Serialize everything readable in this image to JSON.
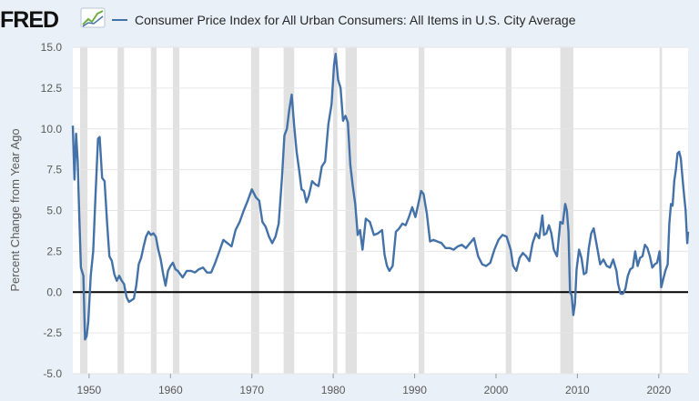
{
  "logo": {
    "text": "FRED"
  },
  "colors": {
    "page_background": "#eaf0f7",
    "plot_background": "#ffffff",
    "series": "#4472a8",
    "recession_shading": "#e1e1e1",
    "zero_line": "#000000",
    "gridline": "#e6e6e6"
  },
  "chart_data": {
    "type": "line",
    "title": "",
    "xlabel": "",
    "ylabel": "Percent Change from Year Ago",
    "xlim": [
      1948.0,
      2023.6
    ],
    "ylim": [
      -5.0,
      15.0
    ],
    "y_ticks": [
      -5.0,
      -2.5,
      0.0,
      2.5,
      5.0,
      7.5,
      10.0,
      12.5,
      15.0
    ],
    "y_tick_labels": [
      "-5.0",
      "-2.5",
      "0.0",
      "2.5",
      "5.0",
      "7.5",
      "10.0",
      "12.5",
      "15.0"
    ],
    "x_ticks": [
      1950,
      1960,
      1970,
      1980,
      1990,
      2000,
      2010,
      2020
    ],
    "x_tick_labels": [
      "1950",
      "1960",
      "1970",
      "1980",
      "1990",
      "2000",
      "2010",
      "2020"
    ],
    "grid": "horizontal",
    "zero_line": true,
    "legend": {
      "placement": "top",
      "entries": [
        "Consumer Price Index for All Urban Consumers: All Items in U.S. City Average"
      ]
    },
    "recessions": [
      [
        1948.9,
        1949.8
      ],
      [
        1953.5,
        1954.3
      ],
      [
        1957.6,
        1958.3
      ],
      [
        1960.3,
        1961.1
      ],
      [
        1969.9,
        1970.9
      ],
      [
        1973.9,
        1975.2
      ],
      [
        1980.0,
        1980.5
      ],
      [
        1981.5,
        1982.9
      ],
      [
        1990.5,
        1991.2
      ],
      [
        2001.2,
        2001.9
      ],
      [
        2007.9,
        2009.5
      ],
      [
        2020.1,
        2020.4
      ]
    ],
    "series": [
      {
        "name": "Consumer Price Index for All Urban Consumers: All Items in U.S. City Average",
        "x": [
          1948.0,
          1948.2,
          1948.4,
          1948.6,
          1948.8,
          1949.0,
          1949.3,
          1949.5,
          1949.7,
          1949.9,
          1950.2,
          1950.5,
          1950.8,
          1951.1,
          1951.3,
          1951.6,
          1951.9,
          1952.2,
          1952.5,
          1952.8,
          1953.1,
          1953.4,
          1953.7,
          1954.0,
          1954.3,
          1954.6,
          1954.9,
          1955.2,
          1955.5,
          1955.8,
          1956.1,
          1956.4,
          1956.7,
          1957.0,
          1957.3,
          1957.6,
          1957.9,
          1958.2,
          1958.5,
          1958.8,
          1959.1,
          1959.4,
          1959.7,
          1960.0,
          1960.3,
          1960.6,
          1960.9,
          1961.2,
          1961.5,
          1962.0,
          1962.5,
          1963.0,
          1963.5,
          1964.0,
          1964.5,
          1965.0,
          1965.5,
          1966.0,
          1966.5,
          1967.0,
          1967.5,
          1968.0,
          1968.5,
          1969.0,
          1969.5,
          1970.0,
          1970.5,
          1970.9,
          1971.3,
          1971.7,
          1972.1,
          1972.5,
          1972.9,
          1973.3,
          1973.7,
          1974.0,
          1974.3,
          1974.6,
          1974.9,
          1975.2,
          1975.5,
          1975.8,
          1976.1,
          1976.4,
          1976.7,
          1977.0,
          1977.4,
          1977.8,
          1978.2,
          1978.6,
          1979.0,
          1979.4,
          1979.8,
          1980.1,
          1980.3,
          1980.6,
          1980.9,
          1981.2,
          1981.5,
          1981.8,
          1982.1,
          1982.4,
          1982.7,
          1983.0,
          1983.3,
          1983.6,
          1984.0,
          1984.5,
          1985.0,
          1985.5,
          1986.0,
          1986.3,
          1986.6,
          1986.9,
          1987.3,
          1987.7,
          1988.1,
          1988.5,
          1988.9,
          1989.3,
          1989.7,
          1990.1,
          1990.5,
          1990.8,
          1991.1,
          1991.5,
          1991.9,
          1992.3,
          1992.8,
          1993.3,
          1993.8,
          1994.3,
          1994.8,
          1995.3,
          1995.8,
          1996.3,
          1996.8,
          1997.3,
          1997.8,
          1998.3,
          1998.8,
          1999.3,
          1999.8,
          2000.3,
          2000.8,
          2001.3,
          2001.8,
          2002.1,
          2002.5,
          2002.9,
          2003.3,
          2003.7,
          2004.1,
          2004.5,
          2004.9,
          2005.3,
          2005.7,
          2005.9,
          2006.2,
          2006.5,
          2006.8,
          2007.1,
          2007.5,
          2007.9,
          2008.2,
          2008.5,
          2008.7,
          2008.9,
          2009.1,
          2009.3,
          2009.5,
          2009.7,
          2009.9,
          2010.2,
          2010.5,
          2010.8,
          2011.1,
          2011.4,
          2011.7,
          2012.0,
          2012.4,
          2012.8,
          2013.2,
          2013.6,
          2014.0,
          2014.4,
          2014.8,
          2015.0,
          2015.3,
          2015.6,
          2015.9,
          2016.2,
          2016.5,
          2016.8,
          2017.1,
          2017.4,
          2017.7,
          2018.0,
          2018.3,
          2018.6,
          2018.9,
          2019.2,
          2019.5,
          2019.8,
          2020.1,
          2020.3,
          2020.5,
          2020.8,
          2021.1,
          2021.3,
          2021.5,
          2021.7,
          2021.9,
          2022.1,
          2022.3,
          2022.5,
          2022.7,
          2022.9,
          2023.1,
          2023.3,
          2023.5,
          2023.6
        ],
        "y": [
          10.2,
          6.9,
          9.7,
          8.0,
          4.5,
          1.5,
          1.0,
          -2.9,
          -2.7,
          -1.8,
          1.0,
          2.5,
          6.0,
          9.4,
          9.5,
          7.0,
          6.8,
          4.3,
          2.2,
          1.9,
          1.1,
          0.7,
          1.0,
          0.7,
          0.5,
          -0.3,
          -0.6,
          -0.5,
          -0.4,
          0.4,
          1.7,
          2.1,
          2.8,
          3.4,
          3.7,
          3.5,
          3.6,
          3.4,
          2.6,
          2.0,
          1.1,
          0.4,
          1.3,
          1.6,
          1.8,
          1.4,
          1.3,
          1.1,
          0.9,
          1.3,
          1.3,
          1.2,
          1.4,
          1.5,
          1.2,
          1.2,
          1.8,
          2.5,
          3.2,
          3.0,
          2.8,
          3.8,
          4.3,
          5.0,
          5.6,
          6.3,
          5.8,
          5.6,
          4.3,
          4.0,
          3.4,
          3.0,
          3.4,
          4.2,
          7.0,
          9.6,
          10.0,
          11.2,
          12.1,
          10.2,
          8.6,
          7.5,
          6.3,
          6.2,
          5.5,
          5.9,
          6.8,
          6.6,
          6.5,
          7.7,
          8.0,
          10.3,
          11.5,
          13.9,
          14.6,
          13.0,
          12.5,
          10.5,
          10.8,
          10.4,
          7.8,
          6.5,
          5.4,
          3.5,
          3.8,
          2.6,
          4.5,
          4.3,
          3.5,
          3.6,
          3.8,
          2.3,
          1.6,
          1.3,
          1.6,
          3.7,
          3.9,
          4.2,
          4.1,
          4.6,
          5.2,
          4.6,
          5.5,
          6.2,
          6.0,
          4.8,
          3.1,
          3.2,
          3.1,
          3.0,
          2.7,
          2.7,
          2.6,
          2.8,
          2.9,
          2.7,
          3.0,
          3.3,
          2.2,
          1.7,
          1.6,
          1.8,
          2.6,
          3.2,
          3.5,
          3.4,
          2.6,
          1.6,
          1.3,
          2.1,
          2.4,
          2.2,
          1.9,
          3.0,
          3.6,
          3.3,
          4.7,
          3.5,
          3.6,
          4.1,
          3.6,
          2.6,
          2.2,
          4.3,
          4.2,
          5.4,
          5.0,
          3.7,
          0.0,
          -0.2,
          -1.4,
          -0.7,
          1.4,
          2.6,
          2.1,
          1.1,
          1.2,
          2.7,
          3.6,
          3.9,
          2.8,
          1.7,
          2.0,
          1.6,
          1.5,
          2.0,
          1.3,
          0.5,
          -0.1,
          -0.1,
          0.2,
          1.0,
          1.4,
          1.5,
          2.5,
          1.6,
          2.1,
          2.2,
          2.9,
          2.7,
          2.2,
          1.5,
          1.7,
          1.8,
          2.5,
          0.3,
          0.7,
          1.3,
          1.7,
          4.2,
          5.4,
          5.3,
          6.8,
          7.5,
          8.5,
          8.6,
          8.2,
          7.1,
          6.0,
          5.0,
          3.0,
          3.7
        ]
      }
    ]
  }
}
